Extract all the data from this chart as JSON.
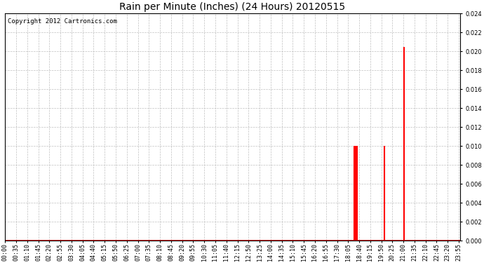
{
  "title": "Rain per Minute (Inches) (24 Hours) 20120515",
  "copyright_text": "Copyright 2012 Cartronics.com",
  "ylim": [
    0.0,
    0.024
  ],
  "yticks": [
    0.0,
    0.002,
    0.004,
    0.006,
    0.008,
    0.01,
    0.012,
    0.014,
    0.016,
    0.018,
    0.02,
    0.022,
    0.024
  ],
  "background_color": "#ffffff",
  "bar_color": "#ff0000",
  "baseline_color": "#ff0000",
  "grid_color": "#c0c0c0",
  "rain_spikes": [
    {
      "minute": 1105,
      "value": 0.01
    },
    {
      "minute": 1107,
      "value": 0.01
    },
    {
      "minute": 1108,
      "value": 0.01
    },
    {
      "minute": 1109,
      "value": 0.01
    },
    {
      "minute": 1110,
      "value": 0.01
    },
    {
      "minute": 1111,
      "value": 0.005
    },
    {
      "minute": 1112,
      "value": 0.01
    },
    {
      "minute": 1113,
      "value": 0.01
    },
    {
      "minute": 1200,
      "value": 0.01
    },
    {
      "minute": 1261,
      "value": 0.0205
    }
  ],
  "total_minutes": 1440,
  "xtick_interval": 35,
  "title_fontsize": 10,
  "tick_fontsize": 6,
  "copyright_fontsize": 6.5
}
